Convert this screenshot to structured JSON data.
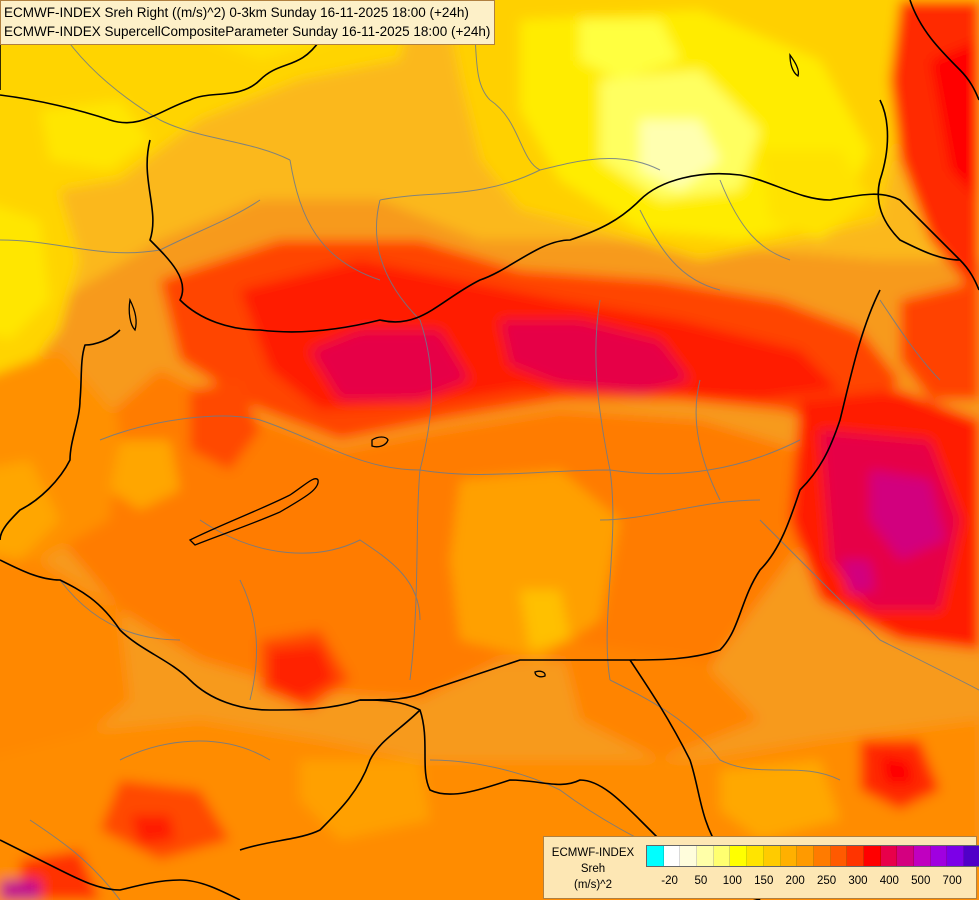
{
  "header": {
    "line1": "ECMWF-INDEX Sreh Right ((m/s)^2) 0-3km Sunday 16-11-2025 18:00 (+24h)",
    "line2": "ECMWF-INDEX SupercellCompositeParameter Sunday 16-11-2025 18:00 (+24h)"
  },
  "legend": {
    "line1": "ECMWF-INDEX",
    "line2": "Sreh",
    "line3": "(m/s)^2",
    "colors": [
      "#00ffff",
      "#ffffff",
      "#fffddc",
      "#ffffa8",
      "#ffff70",
      "#ffff00",
      "#ffe400",
      "#ffcb00",
      "#ffb000",
      "#ff9a00",
      "#ff7b00",
      "#ff5a00",
      "#ff3400",
      "#ff0000",
      "#e8004a",
      "#d40080",
      "#c000c0",
      "#a000e0",
      "#7c00e8",
      "#5000c8",
      "#1000a0"
    ],
    "ticks": [
      {
        "label": "-20",
        "slot": 1
      },
      {
        "label": "50",
        "slot": 3
      },
      {
        "label": "100",
        "slot": 5
      },
      {
        "label": "150",
        "slot": 7
      },
      {
        "label": "200",
        "slot": 9
      },
      {
        "label": "250",
        "slot": 11
      },
      {
        "label": "300",
        "slot": 13
      },
      {
        "label": "400",
        "slot": 15
      },
      {
        "label": "500",
        "slot": 17
      },
      {
        "label": "700",
        "slot": 19
      }
    ]
  }
}
